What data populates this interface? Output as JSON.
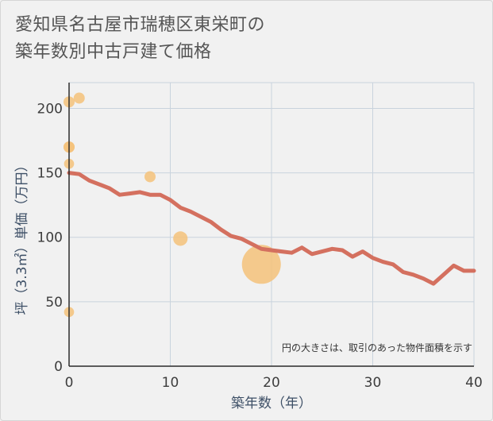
{
  "title_lines": [
    "愛知県名古屋市瑞穂区東栄町の",
    "築年数別中古戸建て価格"
  ],
  "chart_data": {
    "type": "scatter+line",
    "title": "愛知県名古屋市瑞穂区東栄町の築年数別中古戸建て価格",
    "xlabel": "築年数（年）",
    "ylabel": "坪（3.3㎡）単価（万円）",
    "xlim": [
      0,
      40
    ],
    "ylim": [
      0,
      220
    ],
    "xticks": [
      0,
      10,
      20,
      30,
      40
    ],
    "yticks": [
      0,
      50,
      100,
      150,
      200
    ],
    "grid": true,
    "note": "円の大きさは、取引のあった物件面積を示す",
    "colors": {
      "line": "#d4705f",
      "bubble": "#f5c27a",
      "grid": "#c9d3dd",
      "axis": "#2b2b2b"
    },
    "scatter": [
      {
        "x": 0,
        "y": 205,
        "size": 1
      },
      {
        "x": 1,
        "y": 208,
        "size": 1
      },
      {
        "x": 0,
        "y": 170,
        "size": 1
      },
      {
        "x": 0,
        "y": 170,
        "size": 1
      },
      {
        "x": 0,
        "y": 157,
        "size": 0.9
      },
      {
        "x": 8,
        "y": 147,
        "size": 1
      },
      {
        "x": 11,
        "y": 99,
        "size": 1.3
      },
      {
        "x": 19,
        "y": 79,
        "size": 3.5
      },
      {
        "x": 0,
        "y": 42,
        "size": 0.9
      }
    ],
    "line": {
      "x": [
        0,
        1,
        2,
        3,
        4,
        5,
        6,
        7,
        8,
        9,
        10,
        11,
        12,
        13,
        14,
        15,
        16,
        17,
        18,
        19,
        20,
        21,
        22,
        23,
        24,
        25,
        26,
        27,
        28,
        29,
        30,
        31,
        32,
        33,
        34,
        35,
        36,
        37,
        38,
        39,
        40
      ],
      "y": [
        150,
        149,
        144,
        141,
        138,
        133,
        134,
        135,
        133,
        133,
        129,
        123,
        120,
        116,
        112,
        106,
        101,
        99,
        95,
        91,
        90,
        89,
        88,
        92,
        87,
        89,
        91,
        90,
        85,
        89,
        84,
        81,
        79,
        73,
        71,
        68,
        64,
        71,
        78,
        74,
        74
      ]
    }
  }
}
